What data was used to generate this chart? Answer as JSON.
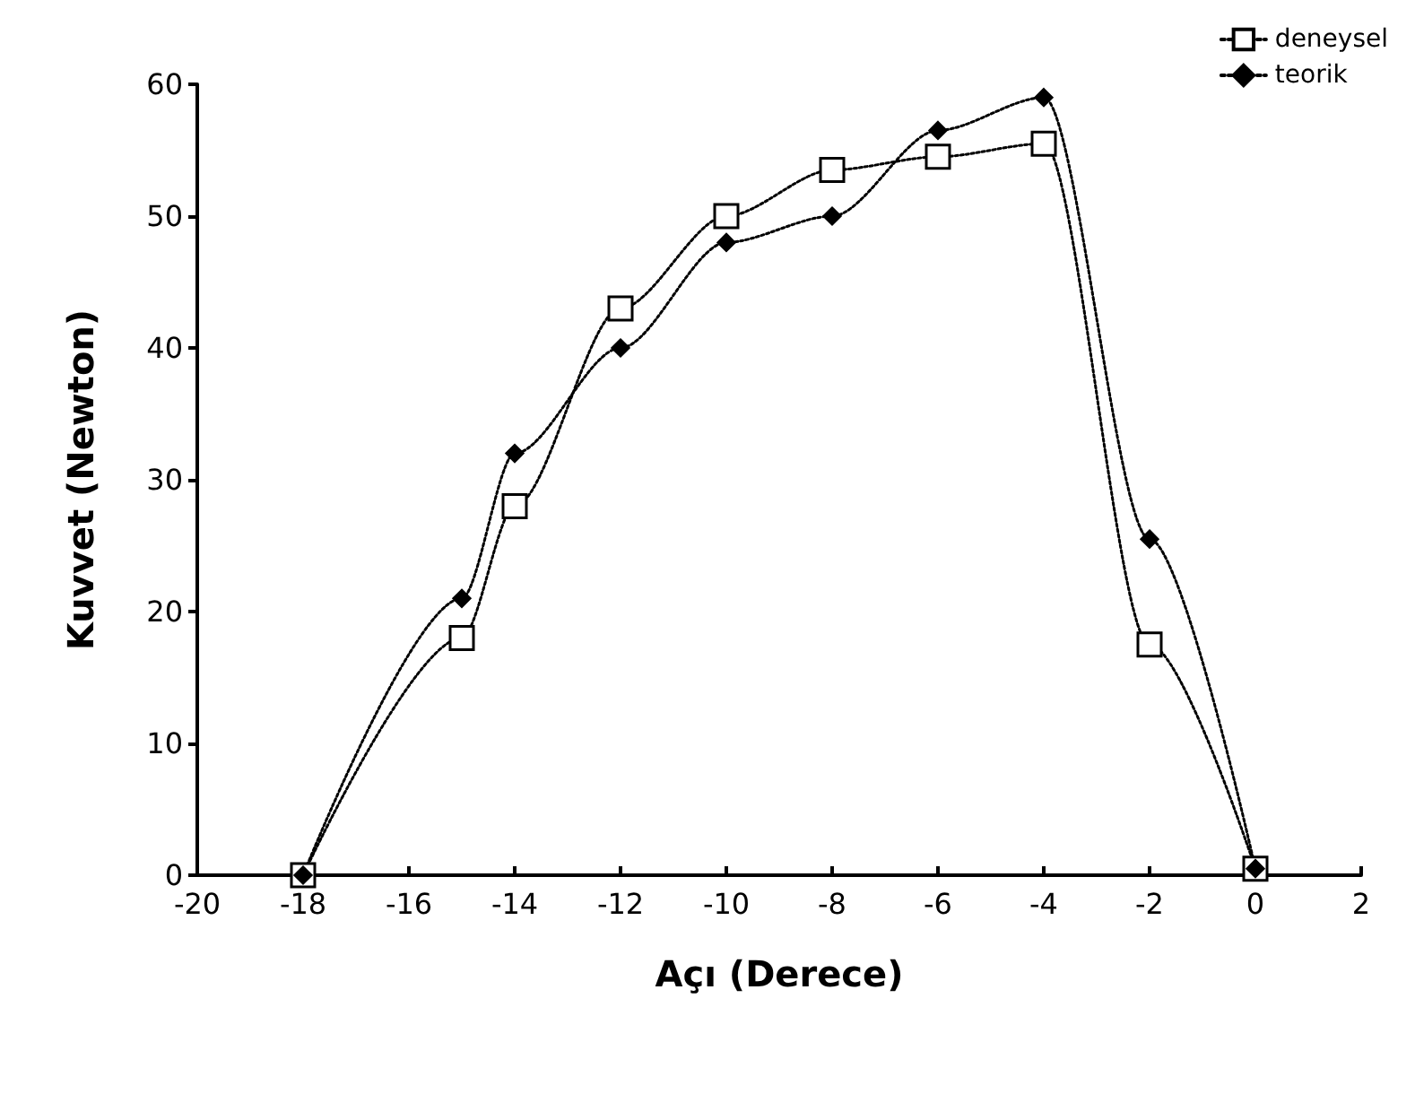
{
  "chart_data": {
    "type": "line",
    "xlabel": "Açı (Derece)",
    "ylabel": "Kuvvet (Newton)",
    "x": [
      -18,
      -15,
      -14,
      -12,
      -10,
      -8,
      -6,
      -4,
      -2,
      0
    ],
    "series": [
      {
        "name": "deneysel",
        "color": "#000000",
        "marker": "square",
        "values": [
          0,
          18,
          28,
          43,
          50,
          53.5,
          54.5,
          55.5,
          17.5,
          0.5
        ]
      },
      {
        "name": "teorik",
        "color": "#000000",
        "marker": "diamond",
        "values": [
          0,
          21,
          32,
          40,
          48,
          50,
          56.5,
          59,
          25.5,
          0.5
        ]
      }
    ],
    "xlim": [
      -20,
      2
    ],
    "xticks": [
      -20,
      -18,
      -16,
      -14,
      -12,
      -10,
      -8,
      -6,
      -4,
      -2,
      0,
      2
    ],
    "ylim": [
      0,
      60
    ],
    "yticks": [
      0,
      10,
      20,
      30,
      40,
      50,
      60
    ],
    "grid": false,
    "legend": "top right",
    "line_style": "dotted"
  }
}
